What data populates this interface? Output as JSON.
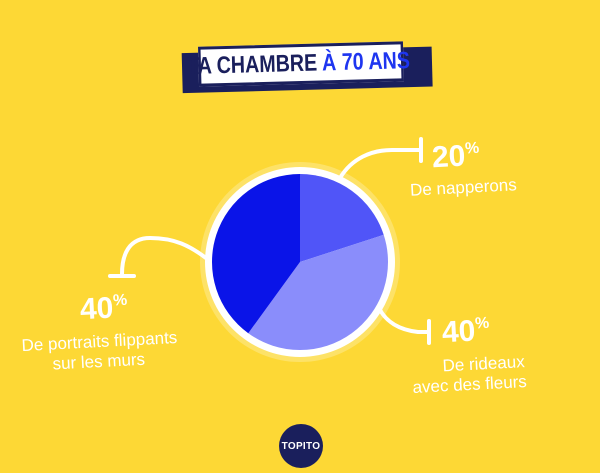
{
  "title": {
    "part1": "TA CHAMBRE",
    "part2": "À 70 ANS",
    "accent": "À 70 ANS"
  },
  "chart_data": {
    "type": "pie",
    "slices": [
      {
        "value": 20,
        "percent_label": "20",
        "label": "De napperons",
        "color": "#5055f8"
      },
      {
        "value": 40,
        "percent_label": "40",
        "label": "De rideaux avec des fleurs",
        "color": "#8a8dfb"
      },
      {
        "value": 40,
        "percent_label": "40",
        "label": "De portraits flippants sur les murs",
        "color": "#0a14e8"
      }
    ],
    "annotations": {
      "napperons_line1": "De napperons",
      "rideaux_line1": "De rideaux",
      "rideaux_line2": "avec des fleurs",
      "portraits_line1": "De portraits flippants",
      "portraits_line2": "sur les murs"
    },
    "legend": "none"
  },
  "logo": {
    "text": "TOPITO"
  },
  "colors": {
    "background": "#FDD835",
    "navy": "#1a1f5c",
    "accent": "#1e35f0"
  }
}
